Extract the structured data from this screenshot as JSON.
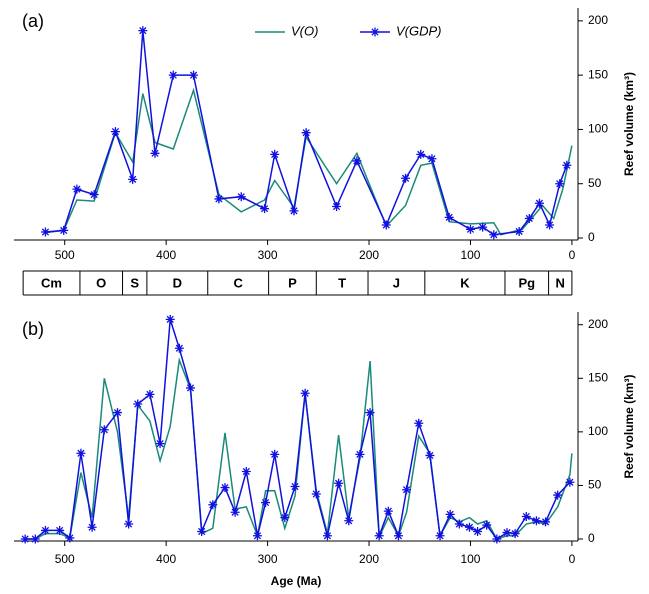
{
  "chart_data": [
    {
      "type": "line",
      "panel_label": "(a)",
      "ylabel": "Reef volume (km³)",
      "xlim": [
        550,
        -6
      ],
      "xticks": [
        500,
        400,
        300,
        200,
        100,
        0
      ],
      "ylim": [
        0,
        210
      ],
      "yticks": [
        0,
        50,
        100,
        150,
        200
      ],
      "legend": "top-center",
      "series": [
        {
          "name": "V(O)",
          "color": "#1a8a7a",
          "marker": false,
          "x": [
            519,
            501,
            488,
            471,
            450,
            433,
            423,
            411,
            393,
            373,
            348,
            326,
            303,
            293,
            274,
            262,
            232,
            212,
            183,
            164,
            149,
            138,
            121,
            100,
            77,
            70,
            49,
            38,
            29,
            18,
            9,
            0
          ],
          "values": [
            5,
            7,
            35,
            34,
            97,
            70,
            133,
            88,
            82,
            136,
            40,
            24,
            35,
            53,
            28,
            93,
            50,
            78,
            11,
            30,
            67,
            69,
            15,
            13,
            14,
            3,
            8,
            20,
            30,
            18,
            45,
            85
          ]
        },
        {
          "name": "V(GDP)",
          "color": "#1010e0",
          "marker": true,
          "x": [
            519,
            501,
            488,
            471,
            450,
            433,
            423,
            411,
            393,
            373,
            348,
            326,
            303,
            293,
            274,
            262,
            232,
            212,
            183,
            164,
            149,
            138,
            121,
            100,
            88,
            77,
            52,
            42,
            32,
            22,
            12,
            5
          ],
          "values": [
            5.5,
            7,
            45,
            40,
            98,
            54,
            191,
            78,
            150,
            150,
            36,
            38,
            27,
            77,
            25,
            97,
            29,
            71,
            12,
            55,
            77,
            73,
            19,
            8,
            10,
            3,
            6,
            18,
            32,
            12,
            50,
            67
          ]
        }
      ],
      "timescale": {
        "labels": [
          "Cm",
          "O",
          "S",
          "D",
          "C",
          "P",
          "T",
          "J",
          "K",
          "Pg",
          "N"
        ],
        "boundaries": [
          541,
          485,
          443,
          419,
          359,
          299,
          252,
          201,
          145,
          66,
          23,
          0
        ]
      }
    },
    {
      "type": "line",
      "panel_label": "(b)",
      "ylabel": "Reef volume (km³)",
      "xlabel": "Age (Ma)",
      "xlim": [
        550,
        -6
      ],
      "xticks": [
        500,
        400,
        300,
        200,
        100,
        0
      ],
      "ylim": [
        0,
        210
      ],
      "yticks": [
        0,
        50,
        100,
        150,
        200
      ],
      "series": [
        {
          "name": "V(O)",
          "color": "#1a8a7a",
          "marker": false,
          "x": [
            539,
            529,
            519,
            505,
            495,
            484,
            473,
            461,
            448,
            437,
            428,
            416,
            406,
            396,
            387,
            376,
            365,
            354,
            342,
            332,
            321,
            310,
            302,
            293,
            283,
            273,
            263,
            252,
            241,
            230,
            220,
            209,
            199,
            190,
            181,
            171,
            163,
            151,
            140,
            130,
            120,
            111,
            101,
            93,
            84,
            74,
            64,
            56,
            45,
            35,
            26,
            14,
            2,
            0
          ],
          "values": [
            0,
            0,
            5,
            5,
            1,
            62,
            20,
            150,
            100,
            20,
            125,
            110,
            73,
            105,
            167,
            140,
            5,
            10,
            99,
            28,
            30,
            3,
            45,
            45,
            10,
            40,
            136,
            45,
            5,
            97,
            20,
            75,
            166,
            2,
            20,
            3,
            25,
            96,
            80,
            3,
            20,
            16,
            20,
            14,
            17,
            0,
            3,
            3,
            14,
            16,
            14,
            30,
            60,
            80
          ]
        },
        {
          "name": "V(GDP)",
          "color": "#1010e0",
          "marker": true,
          "x": [
            539,
            529,
            519,
            505,
            495,
            484,
            473,
            461,
            448,
            437,
            428,
            416,
            406,
            396,
            387,
            376,
            365,
            354,
            342,
            332,
            321,
            310,
            302,
            293,
            283,
            273,
            263,
            252,
            241,
            230,
            220,
            209,
            199,
            190,
            181,
            171,
            163,
            151,
            140,
            130,
            120,
            111,
            101,
            93,
            84,
            74,
            64,
            56,
            45,
            35,
            26,
            14,
            2
          ],
          "values": [
            0,
            0,
            8,
            8,
            1,
            80,
            11,
            102,
            118,
            14,
            126,
            135,
            89,
            205,
            178,
            141,
            7,
            32,
            48,
            25,
            63,
            3,
            34,
            79,
            20,
            49,
            136,
            42,
            3,
            52,
            17,
            79,
            118,
            3,
            26,
            3,
            46,
            108,
            78,
            3,
            23,
            14,
            11,
            7,
            13,
            0,
            6,
            5,
            21,
            17,
            16,
            41,
            53
          ]
        }
      ]
    }
  ]
}
